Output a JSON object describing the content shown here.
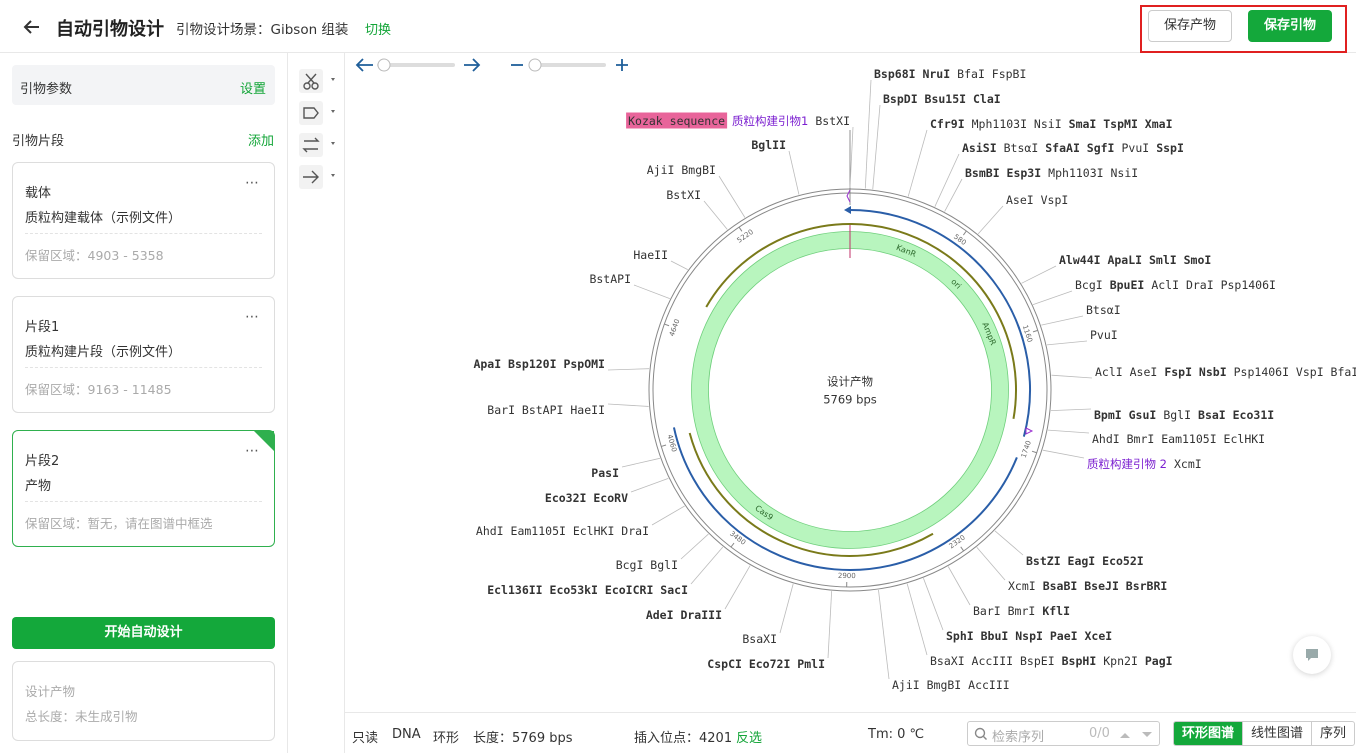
{
  "header": {
    "title": "自动引物设计",
    "scene": "引物设计场景：Gibson 组装",
    "switch": "切换",
    "save_product": "保存产物",
    "save_primer": "保存引物"
  },
  "sidebar": {
    "params": "引物参数",
    "params_action": "设置",
    "fragments_title": "引物片段",
    "add": "添加",
    "cards": [
      {
        "title": "载体",
        "file": "质粒构建载体（示例文件）",
        "region": "保留区域：4903 - 5358"
      },
      {
        "title": "片段1",
        "file": "质粒构建片段（示例文件）",
        "region": "保留区域：9163 - 11485"
      },
      {
        "title": "片段2",
        "file": "产物",
        "region": "保留区域：暂无，请在图谱中框选"
      }
    ],
    "start": "开始自动设计",
    "summary_title": "设计产物",
    "summary_length": "总长度：未生成引物"
  },
  "map": {
    "center_title": "设计产物",
    "center_length": "5769 bps",
    "length": 5769,
    "ticks": [
      580,
      1160,
      1740,
      2320,
      2900,
      3480,
      4060,
      4640,
      5220
    ],
    "features": [
      "KanR",
      "ori",
      "AmpR",
      "Cas9"
    ],
    "labels": [
      {
        "parts": [
          {
            "text": "Bsp68I NruI",
            "bold": true
          },
          {
            "text": "BfaI FspBI"
          }
        ]
      },
      {
        "parts": [
          {
            "text": "BspDI Bsu15I ClaI",
            "bold": true
          }
        ]
      },
      {
        "parts": [
          {
            "text": "Cfr9I",
            "bold": true
          },
          {
            "text": "Mph1103I NsiI"
          },
          {
            "text": "SmaI TspMI XmaI",
            "bold": true
          }
        ]
      },
      {
        "parts": [
          {
            "text": "AsiSI",
            "bold": true
          },
          {
            "text": "BtsαI"
          },
          {
            "text": "SfaAI SgfI",
            "bold": true
          },
          {
            "text": "PvuI"
          },
          {
            "text": "SspI",
            "bold": true
          }
        ]
      },
      {
        "parts": [
          {
            "text": "BsmBI Esp3I",
            "bold": true
          },
          {
            "text": "Mph1103I NsiI"
          }
        ]
      },
      {
        "parts": [
          {
            "text": "AseI VspI"
          }
        ]
      },
      {
        "parts": [
          {
            "text": "Alw44I ApaLI SmlI SmoI",
            "bold": true
          }
        ]
      },
      {
        "parts": [
          {
            "text": "BcgI"
          },
          {
            "text": "BpuEI",
            "bold": true
          },
          {
            "text": "AclI DraI Psp1406I"
          }
        ]
      },
      {
        "parts": [
          {
            "text": "BtsαI"
          }
        ]
      },
      {
        "parts": [
          {
            "text": "PvuI"
          }
        ]
      },
      {
        "parts": [
          {
            "text": "AclI AseI"
          },
          {
            "text": "FspI NsbI",
            "bold": true
          },
          {
            "text": "Psp1406I VspI BfaI"
          }
        ]
      },
      {
        "parts": [
          {
            "text": "BpmI GsuI",
            "bold": true
          },
          {
            "text": "BglI"
          },
          {
            "text": "BsaI Eco31I",
            "bold": true
          }
        ]
      },
      {
        "parts": [
          {
            "text": "AhdI BmrI Eam1105I EclHKI"
          }
        ]
      },
      {
        "parts": [
          {
            "text": "质粒构建引物 2",
            "primer": true
          },
          {
            "text": "XcmI"
          }
        ]
      },
      {
        "parts": [
          {
            "text": "BstZI EagI Eco52I",
            "bold": true
          }
        ]
      },
      {
        "parts": [
          {
            "text": "XcmI"
          },
          {
            "text": "BsaBI BseJI BsrBRI",
            "bold": true
          }
        ]
      },
      {
        "parts": [
          {
            "text": "BarI BmrI"
          },
          {
            "text": "KflI",
            "bold": true
          }
        ]
      },
      {
        "parts": [
          {
            "text": "SphI BbuI NspI PaeI XceI",
            "bold": true
          }
        ]
      },
      {
        "parts": [
          {
            "text": "BsaXI AccIII BspEI"
          },
          {
            "text": "BspHI",
            "bold": true
          },
          {
            "text": "Kpn2I"
          },
          {
            "text": "PagI",
            "bold": true
          }
        ]
      },
      {
        "parts": [
          {
            "text": "AjiI BmgBI AccIII"
          }
        ]
      },
      {
        "parts": [
          {
            "text": "Kozak sequence",
            "highlight": true
          },
          {
            "text": "质粒构建引物1",
            "primer": true
          },
          {
            "text": "BstXI"
          }
        ]
      },
      {
        "parts": [
          {
            "text": "BglII",
            "bold": true
          }
        ]
      },
      {
        "parts": [
          {
            "text": "AjiI BmgBI"
          }
        ]
      },
      {
        "parts": [
          {
            "text": "BstXI"
          }
        ]
      },
      {
        "parts": [
          {
            "text": "HaeII"
          }
        ]
      },
      {
        "parts": [
          {
            "text": "BstAPI"
          }
        ]
      },
      {
        "parts": [
          {
            "text": "ApaI Bsp120I PspOMI",
            "bold": true
          }
        ]
      },
      {
        "parts": [
          {
            "text": "BarI BstAPI HaeII"
          }
        ]
      },
      {
        "parts": [
          {
            "text": "PasI",
            "bold": true
          }
        ]
      },
      {
        "parts": [
          {
            "text": "Eco32I EcoRV",
            "bold": true
          }
        ]
      },
      {
        "parts": [
          {
            "text": "AhdI Eam1105I EclHKI DraI"
          }
        ]
      },
      {
        "parts": [
          {
            "text": "BcgI BglI"
          }
        ]
      },
      {
        "parts": [
          {
            "text": "Ecl136II Eco53kI EcoICRI SacI",
            "bold": true
          }
        ]
      },
      {
        "parts": [
          {
            "text": "AdeI DraIII",
            "bold": true
          }
        ]
      },
      {
        "parts": [
          {
            "text": "BsaXI"
          }
        ]
      },
      {
        "parts": [
          {
            "text": "CspCI Eco72I PmlI",
            "bold": true
          }
        ]
      }
    ]
  },
  "statusbar": {
    "readonly": "只读",
    "dna": "DNA",
    "circular": "环形",
    "length": "长度：5769 bps",
    "insert": "插入位点：4201",
    "invert": "反选",
    "tm": "Tm: 0 ℃",
    "search": "检索序列",
    "count": "0/0",
    "tabs": [
      "环形图谱",
      "线性图谱",
      "序列"
    ]
  }
}
